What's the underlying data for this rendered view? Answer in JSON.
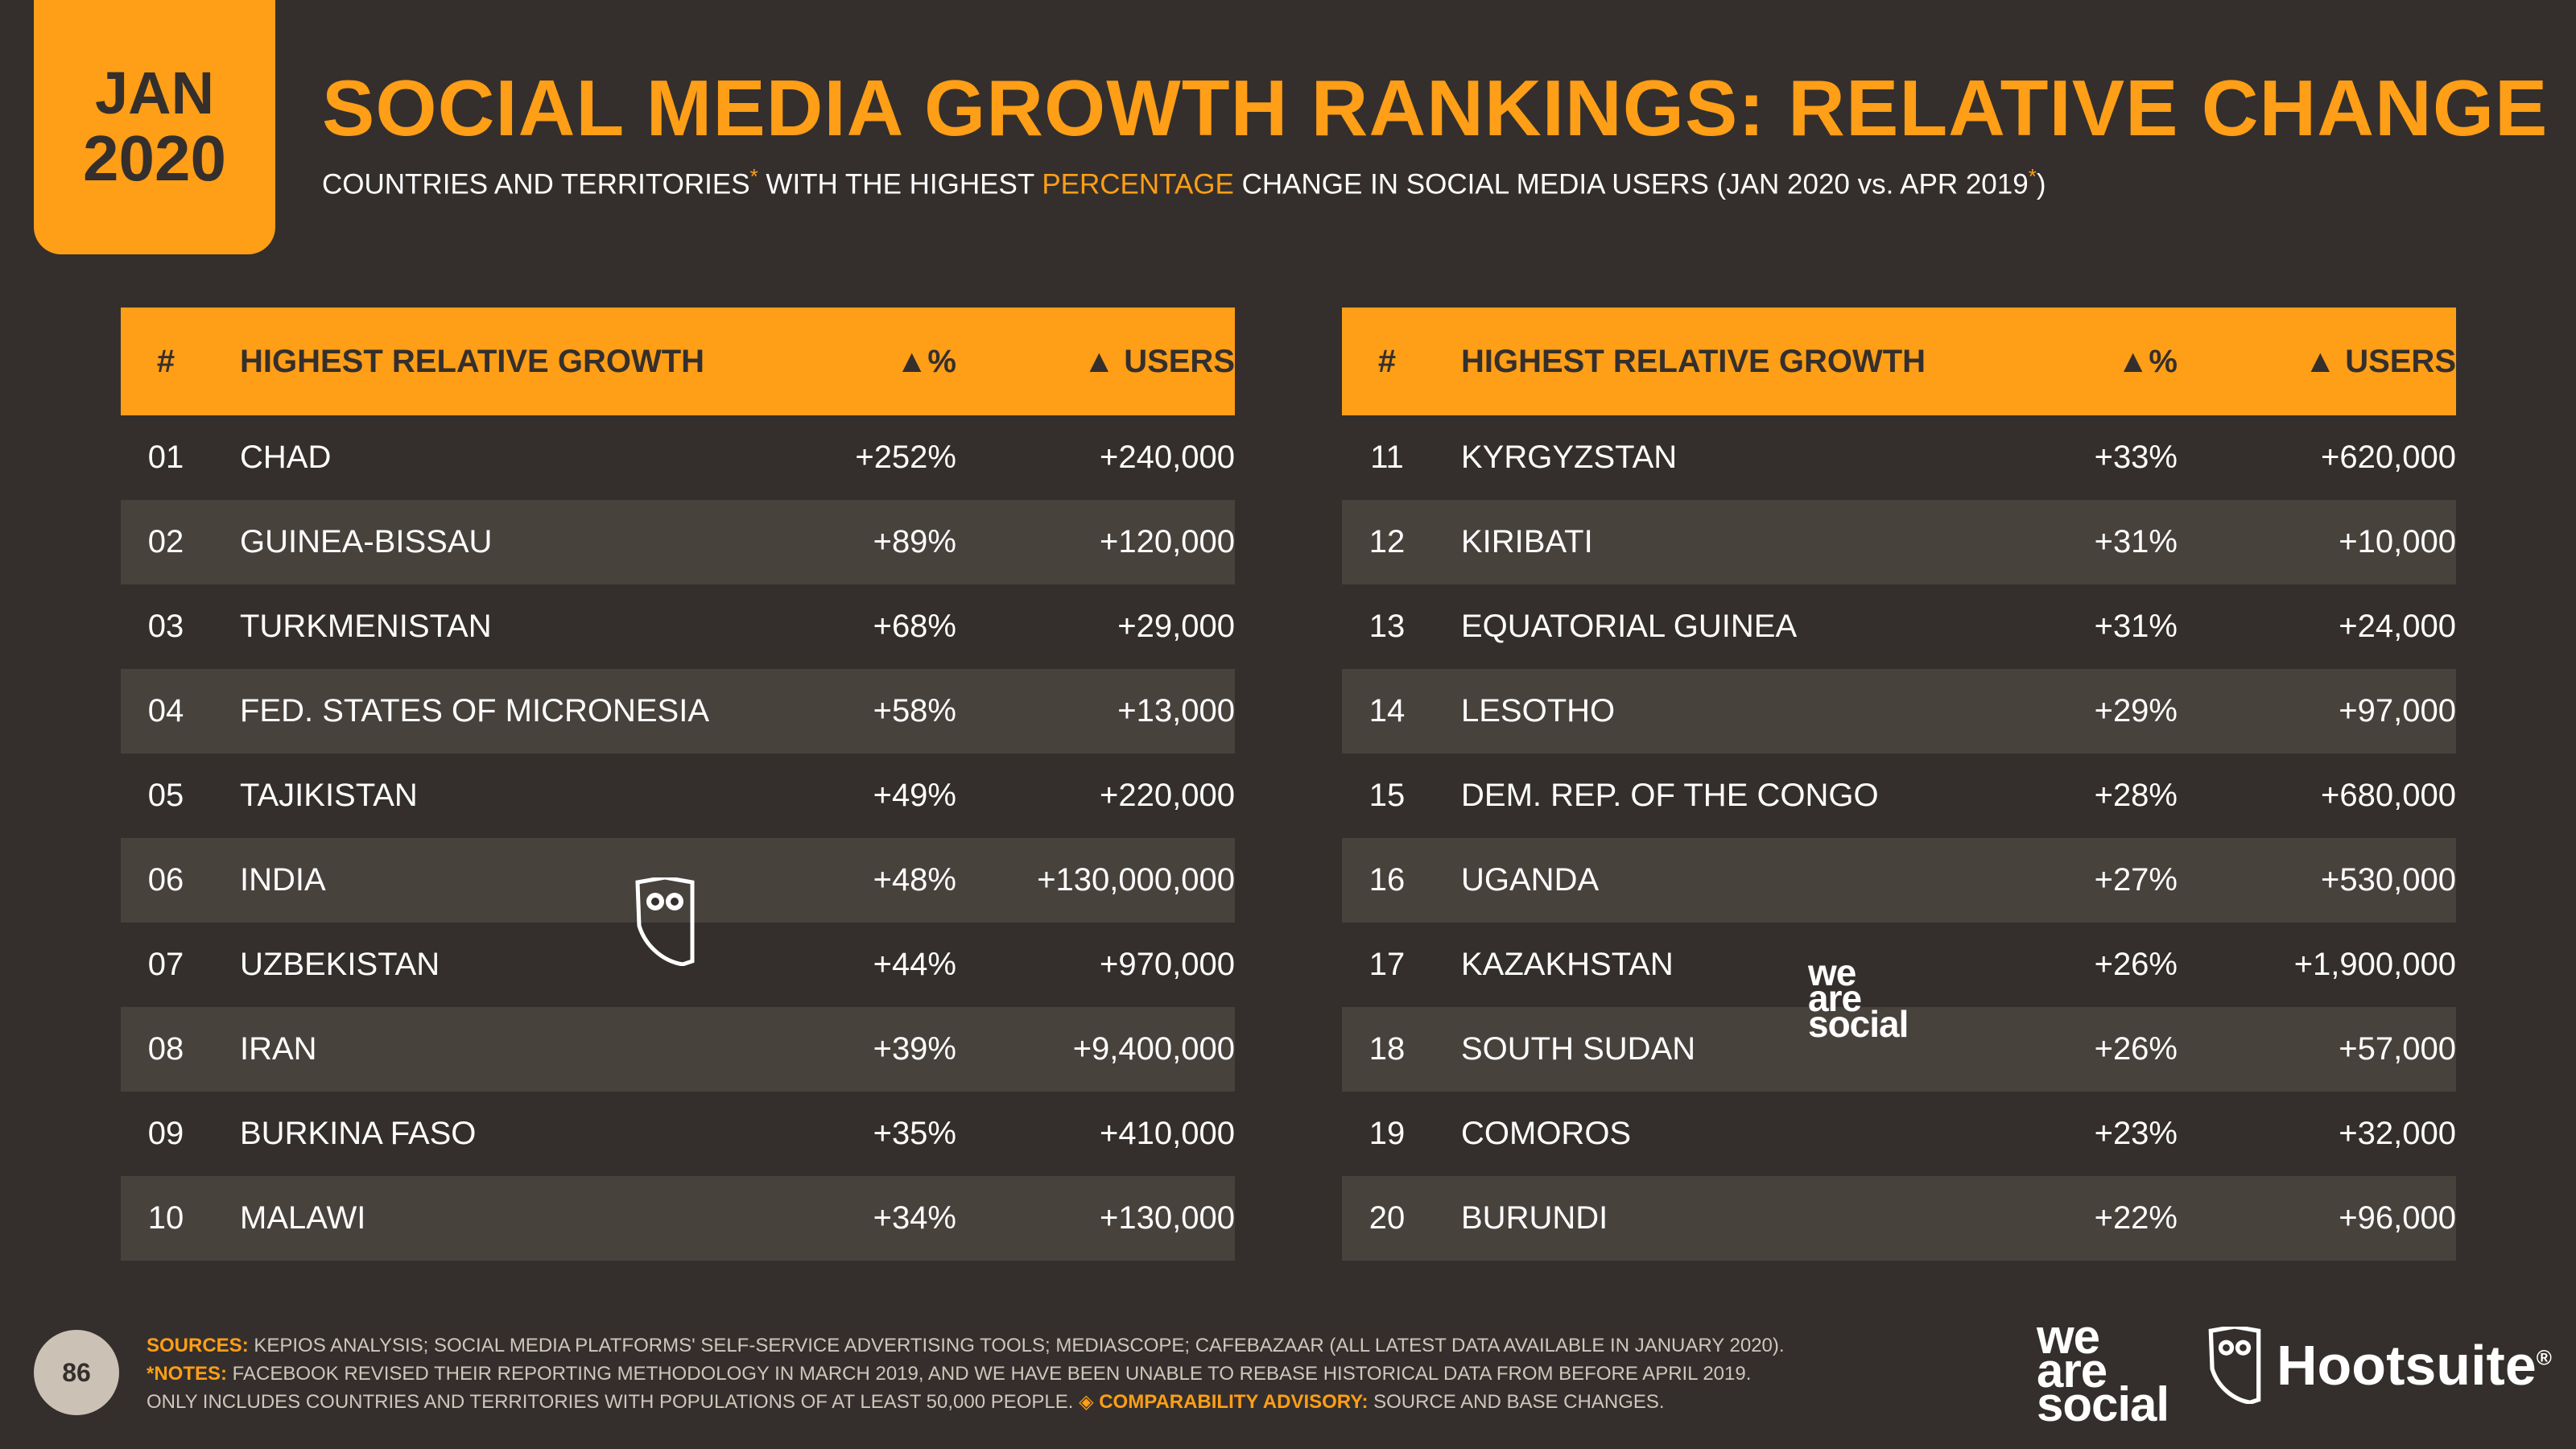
{
  "badge": {
    "month": "JAN",
    "year": "2020"
  },
  "title": "SOCIAL MEDIA GROWTH RANKINGS: RELATIVE CHANGE",
  "subtitle": {
    "part1": "COUNTRIES AND TERRITORIES",
    "asterisk": "*",
    "part2": " WITH THE HIGHEST ",
    "highlight": "PERCENTAGE",
    "part3": " CHANGE IN SOCIAL MEDIA USERS (JAN 2020 vs. APR 2019",
    "asterisk2": "*",
    "part4": ")"
  },
  "table_headers": {
    "num": "#",
    "name": "HIGHEST RELATIVE GROWTH",
    "pct": "▲%",
    "users": "▲ USERS"
  },
  "left_rows": [
    {
      "num": "01",
      "name": "CHAD",
      "pct": "+252%",
      "users": "+240,000"
    },
    {
      "num": "02",
      "name": "GUINEA-BISSAU",
      "pct": "+89%",
      "users": "+120,000"
    },
    {
      "num": "03",
      "name": "TURKMENISTAN",
      "pct": "+68%",
      "users": "+29,000"
    },
    {
      "num": "04",
      "name": "FED. STATES OF MICRONESIA",
      "pct": "+58%",
      "users": "+13,000"
    },
    {
      "num": "05",
      "name": "TAJIKISTAN",
      "pct": "+49%",
      "users": "+220,000"
    },
    {
      "num": "06",
      "name": "INDIA",
      "pct": "+48%",
      "users": "+130,000,000"
    },
    {
      "num": "07",
      "name": "UZBEKISTAN",
      "pct": "+44%",
      "users": "+970,000"
    },
    {
      "num": "08",
      "name": "IRAN",
      "pct": "+39%",
      "users": "+9,400,000"
    },
    {
      "num": "09",
      "name": "BURKINA FASO",
      "pct": "+35%",
      "users": "+410,000"
    },
    {
      "num": "10",
      "name": "MALAWI",
      "pct": "+34%",
      "users": "+130,000"
    }
  ],
  "right_rows": [
    {
      "num": "11",
      "name": "KYRGYZSTAN",
      "pct": "+33%",
      "users": "+620,000"
    },
    {
      "num": "12",
      "name": "KIRIBATI",
      "pct": "+31%",
      "users": "+10,000"
    },
    {
      "num": "13",
      "name": "EQUATORIAL GUINEA",
      "pct": "+31%",
      "users": "+24,000"
    },
    {
      "num": "14",
      "name": "LESOTHO",
      "pct": "+29%",
      "users": "+97,000"
    },
    {
      "num": "15",
      "name": "DEM. REP. OF THE CONGO",
      "pct": "+28%",
      "users": "+680,000"
    },
    {
      "num": "16",
      "name": "UGANDA",
      "pct": "+27%",
      "users": "+530,000"
    },
    {
      "num": "17",
      "name": "KAZAKHSTAN",
      "pct": "+26%",
      "users": "+1,900,000"
    },
    {
      "num": "18",
      "name": "SOUTH SUDAN",
      "pct": "+26%",
      "users": "+57,000"
    },
    {
      "num": "19",
      "name": "COMOROS",
      "pct": "+23%",
      "users": "+32,000"
    },
    {
      "num": "20",
      "name": "BURUNDI",
      "pct": "+22%",
      "users": "+96,000"
    }
  ],
  "watermark_text": {
    "we": "we",
    "are": "are",
    "social": "social"
  },
  "page_number": "86",
  "footnotes": {
    "sources_label": "SOURCES:",
    "sources_text": " KEPIOS ANALYSIS; SOCIAL MEDIA PLATFORMS' SELF-SERVICE ADVERTISING TOOLS; MEDIASCOPE; CAFEBAZAAR (ALL LATEST DATA AVAILABLE IN JANUARY 2020).",
    "notes_label": "*NOTES:",
    "notes_text": " FACEBOOK REVISED THEIR REPORTING METHODOLOGY IN MARCH 2019, AND WE HAVE BEEN UNABLE TO REBASE HISTORICAL DATA FROM BEFORE APRIL 2019.",
    "line3_text": "ONLY INCLUDES COUNTRIES AND TERRITORIES WITH POPULATIONS OF AT LEAST 50,000 PEOPLE. ",
    "advisory_label": "◈ COMPARABILITY ADVISORY:",
    "advisory_text": " SOURCE AND BASE CHANGES."
  },
  "logos": {
    "was_we": "we",
    "was_are": "are",
    "was_social": "social",
    "hootsuite": "Hootsuite",
    "registered": "®"
  },
  "icons": {
    "owl": "hootsuite-owl-icon"
  },
  "colors": {
    "accent": "#ff9e17",
    "background": "#342f2c",
    "row_shade": "#48423d"
  }
}
